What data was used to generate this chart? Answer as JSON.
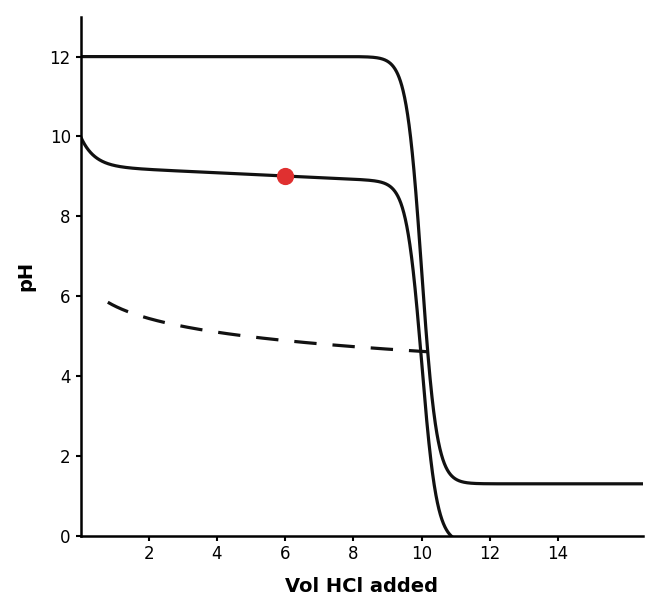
{
  "title": "",
  "xlabel": "Vol HCl added",
  "ylabel": "pH",
  "xlabel_fontsize": 14,
  "ylabel_fontsize": 14,
  "xlabel_fontweight": "bold",
  "ylabel_fontweight": "bold",
  "xlim": [
    0,
    16.5
  ],
  "ylim": [
    0,
    13
  ],
  "xticks": [
    2,
    4,
    6,
    8,
    10,
    12,
    14
  ],
  "yticks": [
    0,
    2,
    4,
    6,
    8,
    10,
    12
  ],
  "background_color": "#ffffff",
  "line_color": "#111111",
  "dot_color": "#e03030",
  "dot_x": 6.0,
  "dot_y": 9.0,
  "dot_size": 130,
  "linewidth": 2.3
}
